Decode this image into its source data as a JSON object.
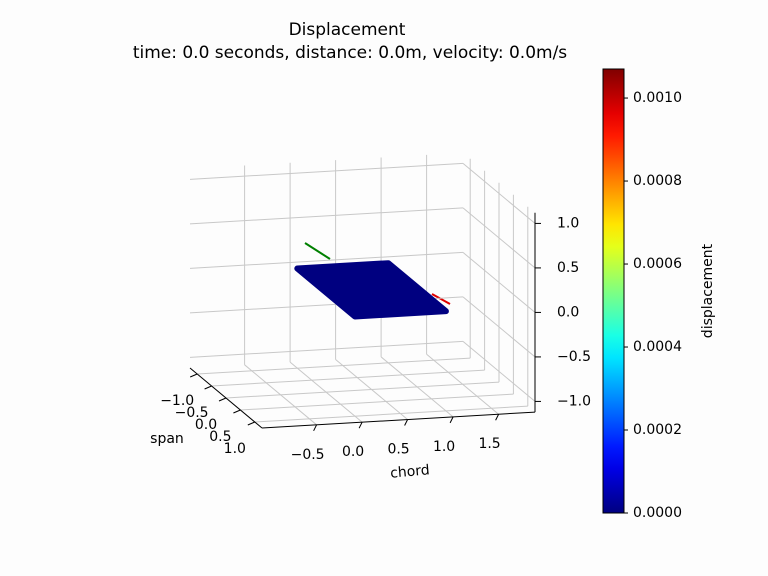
{
  "chart_data": {
    "type": "surface3d",
    "title": "Displacement",
    "subtitle": "time: 0.0 seconds, distance: 0.0m, velocity: 0.0m/s",
    "xlabel": "chord",
    "ylabel": "span",
    "xlim": [
      -1.1,
      1.9
    ],
    "ylim": [
      -1.25,
      1.25
    ],
    "zlim": [
      -1.12,
      1.12
    ],
    "xticks": [
      {
        "value": -0.5,
        "label": "−0.5"
      },
      {
        "value": 0,
        "label": "0.0"
      },
      {
        "value": 0.5,
        "label": "0.5"
      },
      {
        "value": 1,
        "label": "1.0"
      },
      {
        "value": 1.5,
        "label": "1.5"
      }
    ],
    "yticks": [
      {
        "value": -1,
        "label": "−1.0"
      },
      {
        "value": -0.5,
        "label": "−0.5"
      },
      {
        "value": 0,
        "label": "0.0"
      },
      {
        "value": 0.5,
        "label": "0.5"
      },
      {
        "value": 1,
        "label": "1.0"
      }
    ],
    "zticks": [
      {
        "value": -1,
        "label": "−1.0"
      },
      {
        "value": -0.5,
        "label": "−0.5"
      },
      {
        "value": 0,
        "label": "0.0"
      },
      {
        "value": 0.5,
        "label": "0.5"
      },
      {
        "value": 1,
        "label": "1.0"
      }
    ],
    "grid": true,
    "surface": {
      "x": [
        0,
        1
      ],
      "y": [
        -1,
        1
      ],
      "z": [
        [
          0,
          0
        ],
        [
          0,
          0
        ]
      ],
      "displacement": [
        [
          0,
          0
        ],
        [
          0,
          0
        ]
      ]
    },
    "colorbar": {
      "label": "displacement",
      "colormap": "jet",
      "clim": [
        0,
        0.00107
      ],
      "ticks": [
        {
          "value": 0,
          "label": "0.0000"
        },
        {
          "value": 0.0002,
          "label": "0.0002"
        },
        {
          "value": 0.0004,
          "label": "0.0004"
        },
        {
          "value": 0.0006,
          "label": "0.0006"
        },
        {
          "value": 0.0008,
          "label": "0.0008"
        },
        {
          "value": 0.001,
          "label": "0.0010"
        }
      ]
    }
  }
}
